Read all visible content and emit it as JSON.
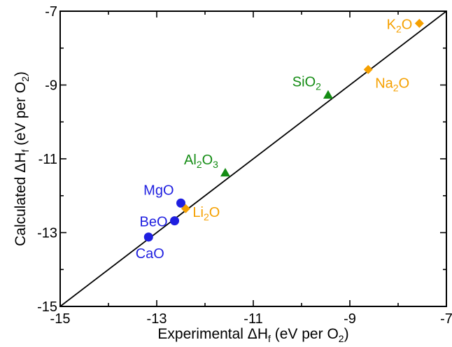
{
  "chart_data": {
    "type": "scatter",
    "title": "",
    "xlabel": {
      "main": "Experimental ΔH",
      "sub1": "f",
      "mid": " (eV per O",
      "sub2": "2",
      "end": ")"
    },
    "ylabel": {
      "main": "Calculated ΔH",
      "sub1": "f",
      "mid": " (eV per O",
      "sub2": "2",
      "end": ")"
    },
    "xlim": [
      -15,
      -7
    ],
    "ylim": [
      -15,
      -7
    ],
    "xticks": [
      {
        "value": -15,
        "label": "-15"
      },
      {
        "value": -13,
        "label": "-13"
      },
      {
        "value": -11,
        "label": "-11"
      },
      {
        "value": -9,
        "label": "-9"
      },
      {
        "value": -7,
        "label": "-7"
      }
    ],
    "yticks": [
      {
        "value": -15,
        "label": "-15"
      },
      {
        "value": -13,
        "label": "-13"
      },
      {
        "value": -11,
        "label": "-11"
      },
      {
        "value": -9,
        "label": "-9"
      },
      {
        "value": -7,
        "label": "-7"
      }
    ],
    "minor_tick_step": 1,
    "grid": false,
    "reference_line": {
      "from": [
        -15,
        -15
      ],
      "to": [
        -7,
        -7
      ],
      "color": "#000000"
    },
    "series": [
      {
        "marker": "circle",
        "color": "#1f1fe0",
        "points": [
          {
            "x": -12.5,
            "y": -12.2,
            "label": {
              "parts": [
                {
                  "t": "MgO"
                }
              ]
            },
            "label_anchor": "above-left"
          },
          {
            "x": -12.63,
            "y": -12.68,
            "label": {
              "parts": [
                {
                  "t": "BeO"
                }
              ]
            },
            "label_anchor": "left"
          },
          {
            "x": -13.17,
            "y": -13.12,
            "label": {
              "parts": [
                {
                  "t": "CaO"
                }
              ]
            },
            "label_anchor": "below"
          }
        ]
      },
      {
        "marker": "diamond",
        "color": "#f5a000",
        "points": [
          {
            "x": -12.4,
            "y": -12.35,
            "label": {
              "parts": [
                {
                  "t": "Li"
                },
                {
                  "t": "2",
                  "sub": true
                },
                {
                  "t": "O"
                }
              ]
            },
            "label_anchor": "right"
          },
          {
            "x": -8.62,
            "y": -8.58,
            "label": {
              "parts": [
                {
                  "t": "Na"
                },
                {
                  "t": "2",
                  "sub": true
                },
                {
                  "t": "O"
                }
              ]
            },
            "label_anchor": "below-right"
          },
          {
            "x": -7.56,
            "y": -7.33,
            "label": {
              "parts": [
                {
                  "t": "K"
                },
                {
                  "t": "2",
                  "sub": true
                },
                {
                  "t": "O"
                }
              ]
            },
            "label_anchor": "left"
          }
        ]
      },
      {
        "marker": "triangle",
        "color": "#148c14",
        "points": [
          {
            "x": -11.58,
            "y": -11.38,
            "label": {
              "parts": [
                {
                  "t": "Al"
                },
                {
                  "t": "2",
                  "sub": true
                },
                {
                  "t": "O"
                },
                {
                  "t": "3",
                  "sub": true
                }
              ]
            },
            "label_anchor": "above-left"
          },
          {
            "x": -9.45,
            "y": -9.27,
            "label": {
              "parts": [
                {
                  "t": "SiO"
                },
                {
                  "t": "2",
                  "sub": true
                }
              ]
            },
            "label_anchor": "above-left"
          }
        ]
      }
    ]
  }
}
